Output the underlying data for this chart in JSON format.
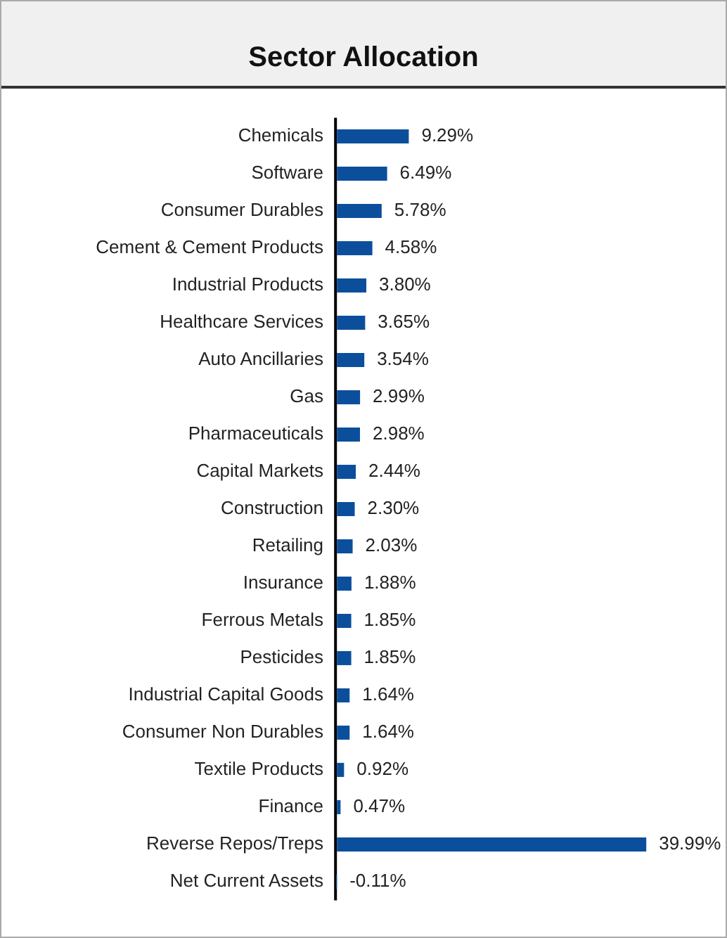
{
  "chart_data": {
    "type": "bar",
    "orientation": "horizontal",
    "title": "Sector Allocation",
    "categories": [
      "Chemicals",
      "Software",
      "Consumer Durables",
      "Cement & Cement Products",
      "Industrial Products",
      "Healthcare Services",
      "Auto Ancillaries",
      "Gas",
      "Pharmaceuticals",
      "Capital Markets",
      "Construction",
      "Retailing",
      "Insurance",
      "Ferrous Metals",
      "Pesticides",
      "Industrial Capital Goods",
      "Consumer Non Durables",
      "Textile Products",
      "Finance",
      "Reverse Repos/Treps",
      "Net Current Assets"
    ],
    "values": [
      9.29,
      6.49,
      5.78,
      4.58,
      3.8,
      3.65,
      3.54,
      2.99,
      2.98,
      2.44,
      2.3,
      2.03,
      1.88,
      1.85,
      1.85,
      1.64,
      1.64,
      0.92,
      0.47,
      39.99,
      -0.11
    ],
    "value_labels": [
      "9.29%",
      "6.49%",
      "5.78%",
      "4.58%",
      "3.80%",
      "3.65%",
      "3.54%",
      "2.99%",
      "2.98%",
      "2.44%",
      "2.30%",
      "2.03%",
      "1.88%",
      "1.85%",
      "1.85%",
      "1.64%",
      "1.64%",
      "0.92%",
      "0.47%",
      "39.99%",
      "-0.11%"
    ],
    "color": "#0b4f9c",
    "legend": false,
    "grid": false
  }
}
